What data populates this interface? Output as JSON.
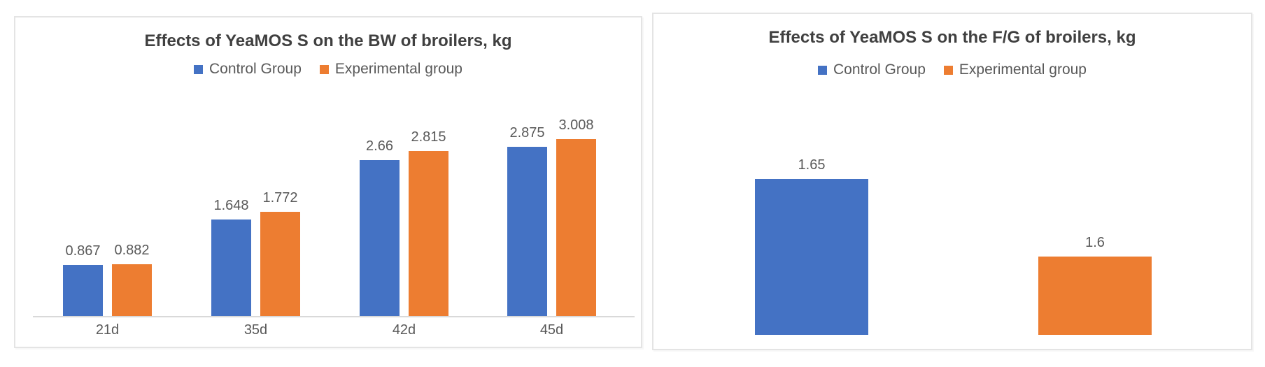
{
  "chart_data": [
    {
      "type": "bar",
      "title": "Effects of YeaMOS S on the BW of broilers, kg",
      "categories": [
        "21d",
        "35d",
        "42d",
        "45d"
      ],
      "series": [
        {
          "name": "Control Group",
          "color": "#4472C4",
          "values": [
            0.867,
            1.648,
            2.66,
            2.875
          ]
        },
        {
          "name": "Experimental group",
          "color": "#ED7D31",
          "values": [
            0.882,
            1.772,
            2.815,
            3.008
          ]
        }
      ],
      "xlabel": "",
      "ylabel": "",
      "ylim": [
        0,
        3.2
      ],
      "grid": false,
      "data_labels": true,
      "legend_position": "top",
      "x_axis_line": true,
      "y_axis_visible": false
    },
    {
      "type": "bar",
      "title": "Effects of YeaMOS S on the F/G of broilers, kg",
      "categories": [
        ""
      ],
      "series": [
        {
          "name": "Control Group",
          "color": "#4472C4",
          "values": [
            1.65
          ]
        },
        {
          "name": "Experimental group",
          "color": "#ED7D31",
          "values": [
            1.6
          ]
        }
      ],
      "xlabel": "",
      "ylabel": "",
      "ylim": [
        1.55,
        1.66
      ],
      "grid": false,
      "data_labels": true,
      "legend_position": "top",
      "x_axis_line": false,
      "y_axis_visible": false
    }
  ],
  "colors": {
    "control_group": "#4472C4",
    "experimental_group": "#ED7D31",
    "title_text": "#404040",
    "label_text": "#595959",
    "axis_line": "#d9d9d9",
    "panel_border": "#e4e4e4"
  }
}
